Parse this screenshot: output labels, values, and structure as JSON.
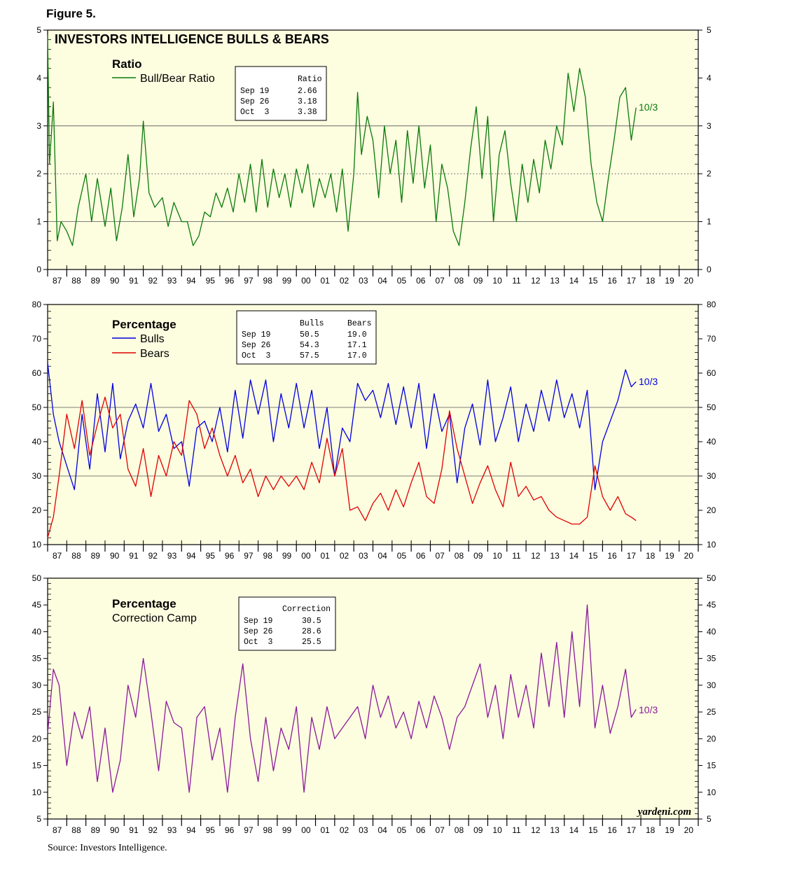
{
  "figure_label": "Figure 5.",
  "source": "Source: Investors Intelligence.",
  "watermark": "yardeni.com",
  "colors": {
    "background": "#fdfde0",
    "ratio": "#0a7a0a",
    "bulls": "#0000e0",
    "bears": "#e00000",
    "correction": "#8a1a9a"
  },
  "chart_data": [
    {
      "type": "line",
      "title": "INVESTORS INTELLIGENCE BULLS & BEARS",
      "subtitle": "Ratio",
      "ylim": [
        0,
        5
      ],
      "yticks": [
        "0",
        "1",
        "2",
        "3",
        "4",
        "5"
      ],
      "xlim": [
        1987,
        2021
      ],
      "x_tick_labels": [
        "87",
        "88",
        "89",
        "90",
        "91",
        "92",
        "93",
        "94",
        "95",
        "96",
        "97",
        "98",
        "99",
        "00",
        "01",
        "02",
        "03",
        "04",
        "05",
        "06",
        "07",
        "08",
        "09",
        "10",
        "11",
        "12",
        "13",
        "14",
        "15",
        "16",
        "17",
        "18",
        "19",
        "20"
      ],
      "reference_lines": [
        1,
        2,
        3
      ],
      "latest_label": "10/3",
      "series": [
        {
          "name": "Bull/Bear Ratio",
          "x": [
            1987.0,
            1987.1,
            1987.3,
            1987.5,
            1987.7,
            1988.0,
            1988.3,
            1988.6,
            1989.0,
            1989.3,
            1989.6,
            1990.0,
            1990.3,
            1990.6,
            1990.9,
            1991.2,
            1991.5,
            1991.8,
            1992.0,
            1992.3,
            1992.6,
            1993.0,
            1993.3,
            1993.6,
            1994.0,
            1994.3,
            1994.6,
            1994.9,
            1995.2,
            1995.5,
            1995.8,
            1996.1,
            1996.4,
            1996.7,
            1997.0,
            1997.3,
            1997.6,
            1997.9,
            1998.2,
            1998.5,
            1998.8,
            1999.1,
            1999.4,
            1999.7,
            2000.0,
            2000.3,
            2000.6,
            2000.9,
            2001.2,
            2001.5,
            2001.8,
            2002.1,
            2002.4,
            2002.7,
            2003.0,
            2003.2,
            2003.4,
            2003.7,
            2004.0,
            2004.3,
            2004.6,
            2004.9,
            2005.2,
            2005.5,
            2005.8,
            2006.1,
            2006.4,
            2006.7,
            2007.0,
            2007.3,
            2007.6,
            2007.9,
            2008.2,
            2008.5,
            2008.8,
            2009.1,
            2009.4,
            2009.7,
            2010.0,
            2010.3,
            2010.6,
            2010.9,
            2011.2,
            2011.5,
            2011.8,
            2012.1,
            2012.4,
            2012.7,
            2013.0,
            2013.3,
            2013.6,
            2013.9,
            2014.2,
            2014.5,
            2014.8,
            2015.1,
            2015.4,
            2015.7,
            2016.0,
            2016.3,
            2016.6,
            2016.9,
            2017.2,
            2017.5,
            2017.75
          ],
          "y": [
            4.9,
            2.2,
            3.5,
            0.6,
            1.0,
            0.8,
            0.5,
            1.3,
            2.0,
            1.0,
            1.9,
            0.9,
            1.7,
            0.6,
            1.3,
            2.4,
            1.1,
            1.9,
            3.1,
            1.6,
            1.3,
            1.5,
            0.9,
            1.4,
            1.0,
            1.0,
            0.5,
            0.7,
            1.2,
            1.1,
            1.6,
            1.3,
            1.7,
            1.2,
            2.0,
            1.4,
            2.2,
            1.2,
            2.3,
            1.3,
            2.1,
            1.5,
            2.0,
            1.3,
            2.1,
            1.6,
            2.2,
            1.3,
            1.9,
            1.5,
            2.0,
            1.2,
            2.1,
            0.8,
            2.0,
            3.7,
            2.4,
            3.2,
            2.7,
            1.5,
            3.0,
            2.0,
            2.7,
            1.4,
            2.9,
            1.8,
            3.0,
            1.7,
            2.6,
            1.0,
            2.2,
            1.7,
            0.8,
            0.5,
            1.4,
            2.5,
            3.4,
            1.9,
            3.2,
            1.0,
            2.4,
            2.9,
            1.8,
            1.0,
            2.2,
            1.4,
            2.3,
            1.6,
            2.7,
            2.1,
            3.0,
            2.6,
            4.1,
            3.3,
            4.2,
            3.6,
            2.2,
            1.4,
            1.0,
            1.9,
            2.7,
            3.6,
            3.8,
            2.7,
            3.38
          ]
        }
      ],
      "table": {
        "header": [
          "",
          "Ratio"
        ],
        "rows": [
          [
            "Sep 19",
            "2.66"
          ],
          [
            "Sep 26",
            "3.18"
          ],
          [
            "Oct  3",
            "3.38"
          ]
        ]
      }
    },
    {
      "type": "line",
      "subtitle": "Percentage",
      "ylim": [
        10,
        80
      ],
      "yticks": [
        "10",
        "20",
        "30",
        "40",
        "50",
        "60",
        "70",
        "80"
      ],
      "xlim": [
        1987,
        2021
      ],
      "reference_lines": [
        30,
        50
      ],
      "latest_label": "10/3",
      "series": [
        {
          "name": "Bulls",
          "x": [
            1987.0,
            1987.3,
            1987.6,
            1988.0,
            1988.4,
            1988.8,
            1989.2,
            1989.6,
            1990.0,
            1990.4,
            1990.8,
            1991.2,
            1991.6,
            1992.0,
            1992.4,
            1992.8,
            1993.2,
            1993.6,
            1994.0,
            1994.4,
            1994.8,
            1995.2,
            1995.6,
            1996.0,
            1996.4,
            1996.8,
            1997.2,
            1997.6,
            1998.0,
            1998.4,
            1998.8,
            1999.2,
            1999.6,
            2000.0,
            2000.4,
            2000.8,
            2001.2,
            2001.6,
            2002.0,
            2002.4,
            2002.8,
            2003.2,
            2003.6,
            2004.0,
            2004.4,
            2004.8,
            2005.2,
            2005.6,
            2006.0,
            2006.4,
            2006.8,
            2007.2,
            2007.6,
            2008.0,
            2008.4,
            2008.8,
            2009.2,
            2009.6,
            2010.0,
            2010.4,
            2010.8,
            2011.2,
            2011.6,
            2012.0,
            2012.4,
            2012.8,
            2013.2,
            2013.6,
            2014.0,
            2014.4,
            2014.8,
            2015.2,
            2015.6,
            2016.0,
            2016.4,
            2016.8,
            2017.2,
            2017.5,
            2017.75
          ],
          "y": [
            63,
            48,
            40,
            33,
            26,
            48,
            32,
            54,
            37,
            57,
            35,
            46,
            51,
            44,
            57,
            43,
            48,
            38,
            40,
            27,
            44,
            46,
            40,
            50,
            37,
            55,
            41,
            58,
            48,
            58,
            40,
            54,
            44,
            57,
            44,
            55,
            38,
            50,
            30,
            44,
            40,
            57,
            52,
            55,
            47,
            57,
            45,
            56,
            44,
            57,
            38,
            54,
            43,
            48,
            28,
            44,
            51,
            39,
            58,
            40,
            47,
            56,
            40,
            51,
            43,
            55,
            46,
            58,
            47,
            54,
            44,
            55,
            26,
            40,
            46,
            52,
            61,
            56,
            57.5
          ]
        },
        {
          "name": "Bears",
          "x": [
            1987.0,
            1987.3,
            1987.6,
            1988.0,
            1988.4,
            1988.8,
            1989.2,
            1989.6,
            1990.0,
            1990.4,
            1990.8,
            1991.2,
            1991.6,
            1992.0,
            1992.4,
            1992.8,
            1993.2,
            1993.6,
            1994.0,
            1994.4,
            1994.8,
            1995.2,
            1995.6,
            1996.0,
            1996.4,
            1996.8,
            1997.2,
            1997.6,
            1998.0,
            1998.4,
            1998.8,
            1999.2,
            1999.6,
            2000.0,
            2000.4,
            2000.8,
            2001.2,
            2001.6,
            2002.0,
            2002.4,
            2002.8,
            2003.2,
            2003.6,
            2004.0,
            2004.4,
            2004.8,
            2005.2,
            2005.6,
            2006.0,
            2006.4,
            2006.8,
            2007.2,
            2007.6,
            2008.0,
            2008.4,
            2008.8,
            2009.2,
            2009.6,
            2010.0,
            2010.4,
            2010.8,
            2011.2,
            2011.6,
            2012.0,
            2012.4,
            2012.8,
            2013.2,
            2013.6,
            2014.0,
            2014.4,
            2014.8,
            2015.2,
            2015.6,
            2016.0,
            2016.4,
            2016.8,
            2017.2,
            2017.5,
            2017.75
          ],
          "y": [
            12,
            18,
            30,
            48,
            38,
            52,
            36,
            45,
            53,
            44,
            48,
            32,
            27,
            38,
            24,
            36,
            30,
            40,
            36,
            52,
            48,
            38,
            44,
            36,
            30,
            36,
            28,
            32,
            24,
            30,
            26,
            30,
            27,
            30,
            26,
            34,
            28,
            41,
            30,
            38,
            20,
            21,
            17,
            22,
            25,
            20,
            26,
            21,
            28,
            34,
            24,
            22,
            32,
            49,
            38,
            30,
            22,
            28,
            33,
            26,
            21,
            34,
            24,
            27,
            23,
            24,
            20,
            18,
            17,
            16,
            16,
            18,
            33,
            24,
            20,
            24,
            19,
            18,
            17.0
          ]
        }
      ],
      "table": {
        "header": [
          "",
          "Bulls",
          "Bears"
        ],
        "rows": [
          [
            "Sep 19",
            "50.5",
            "19.0"
          ],
          [
            "Sep 26",
            "54.3",
            "17.1"
          ],
          [
            "Oct  3",
            "57.5",
            "17.0"
          ]
        ]
      }
    },
    {
      "type": "line",
      "subtitle": "Percentage",
      "ylim": [
        5,
        50
      ],
      "yticks": [
        "5",
        "10",
        "15",
        "20",
        "25",
        "30",
        "35",
        "40",
        "45",
        "50"
      ],
      "xlim": [
        1987,
        2021
      ],
      "latest_label": "10/3",
      "series": [
        {
          "name": "Correction Camp",
          "x": [
            1987.0,
            1987.3,
            1987.6,
            1988.0,
            1988.4,
            1988.8,
            1989.2,
            1989.6,
            1990.0,
            1990.4,
            1990.8,
            1991.2,
            1991.6,
            1992.0,
            1992.4,
            1992.8,
            1993.2,
            1993.6,
            1994.0,
            1994.4,
            1994.8,
            1995.2,
            1995.6,
            1996.0,
            1996.4,
            1996.8,
            1997.2,
            1997.6,
            1998.0,
            1998.4,
            1998.8,
            1999.2,
            1999.6,
            2000.0,
            2000.4,
            2000.8,
            2001.2,
            2001.6,
            2002.0,
            2002.4,
            2002.8,
            2003.2,
            2003.6,
            2004.0,
            2004.4,
            2004.8,
            2005.2,
            2005.6,
            2006.0,
            2006.4,
            2006.8,
            2007.2,
            2007.6,
            2008.0,
            2008.4,
            2008.8,
            2009.2,
            2009.6,
            2010.0,
            2010.4,
            2010.8,
            2011.2,
            2011.6,
            2012.0,
            2012.4,
            2012.8,
            2013.2,
            2013.6,
            2014.0,
            2014.4,
            2014.8,
            2015.2,
            2015.6,
            2016.0,
            2016.4,
            2016.8,
            2017.2,
            2017.5,
            2017.75
          ],
          "y": [
            21,
            33,
            30,
            15,
            25,
            20,
            26,
            12,
            22,
            10,
            16,
            30,
            24,
            35,
            25,
            14,
            27,
            23,
            22,
            10,
            24,
            26,
            16,
            22,
            10,
            24,
            34,
            20,
            12,
            24,
            14,
            22,
            18,
            26,
            10,
            24,
            18,
            26,
            20,
            22,
            24,
            26,
            20,
            30,
            24,
            28,
            22,
            25,
            20,
            27,
            22,
            28,
            24,
            18,
            24,
            26,
            30,
            34,
            24,
            30,
            20,
            32,
            24,
            30,
            22,
            36,
            26,
            38,
            24,
            40,
            26,
            45,
            22,
            30,
            21,
            26,
            33,
            24,
            25.5
          ]
        }
      ],
      "table": {
        "header": [
          "",
          "Correction"
        ],
        "rows": [
          [
            "Sep 19",
            "30.5"
          ],
          [
            "Sep 26",
            "28.6"
          ],
          [
            "Oct  3",
            "25.5"
          ]
        ]
      }
    }
  ]
}
